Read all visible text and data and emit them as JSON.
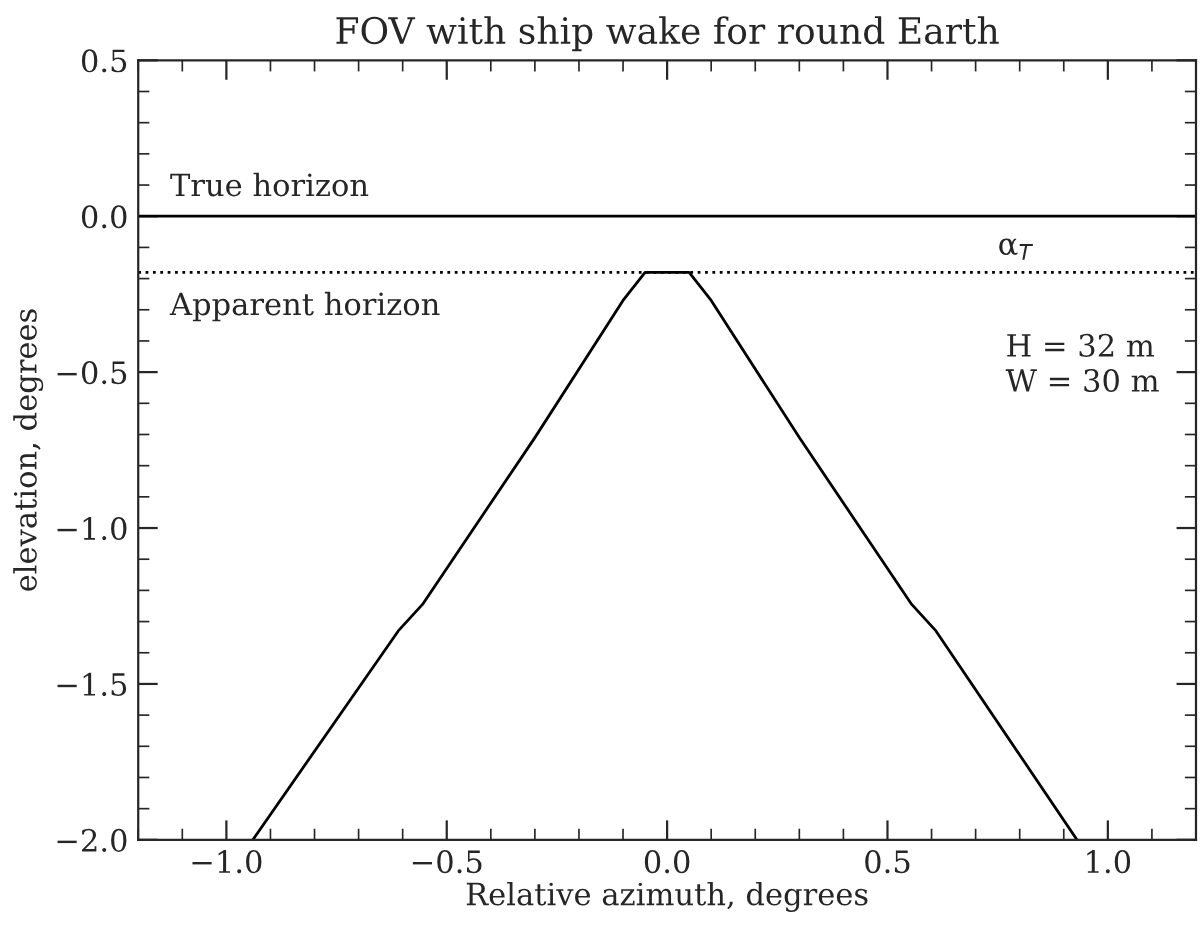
{
  "chart_data": {
    "type": "line",
    "title": "FOV with ship wake for round Earth",
    "xlabel": "Relative azimuth, degrees",
    "ylabel": "elevation, degrees",
    "x": [
      -0.94,
      -0.61,
      -0.555,
      -0.3,
      -0.1,
      -0.05,
      0.05,
      0.1,
      0.3,
      0.555,
      0.61,
      0.93
    ],
    "series": [
      {
        "color": "#000000",
        "values": [
          -2.0,
          -1.33,
          -1.245,
          -0.71,
          -0.27,
          -0.18,
          -0.18,
          -0.27,
          -0.71,
          -1.245,
          -1.33,
          -2.0
        ]
      }
    ],
    "xlim": [
      -1.2,
      1.2
    ],
    "ylim": [
      -2.0,
      0.5
    ],
    "xticks": [
      {
        "value": -1.0,
        "label": "−1.0"
      },
      {
        "value": -0.5,
        "label": "−0.5"
      },
      {
        "value": 0.0,
        "label": "0.0"
      },
      0.5,
      {
        "value": 1.0,
        "label": "1.0"
      }
    ],
    "yticks": [
      {
        "value": -2.0,
        "label": "−2.0"
      },
      {
        "value": -1.5,
        "label": "−1.5"
      },
      {
        "value": -1.0,
        "label": "−1.0"
      },
      {
        "value": -0.5,
        "label": "−0.5"
      },
      {
        "value": 0.0,
        "label": "0.0"
      },
      0.5
    ],
    "ref_lines": [
      {
        "axis": "y",
        "value": 0.0,
        "label": "True horizon",
        "color": "#000000",
        "line_style": "solid"
      },
      {
        "axis": "y",
        "value": -0.18,
        "label": "Apparent horizon",
        "color": "#000000",
        "line_style": "dotted"
      }
    ],
    "annotations": [
      {
        "text": "α$_{T}$",
        "x": 0.75,
        "y": -0.18
      },
      "H = 32 m",
      "W = 30 m"
    ],
    "grid": false,
    "legend": false,
    "marker": "none",
    "line_style": "solid"
  }
}
